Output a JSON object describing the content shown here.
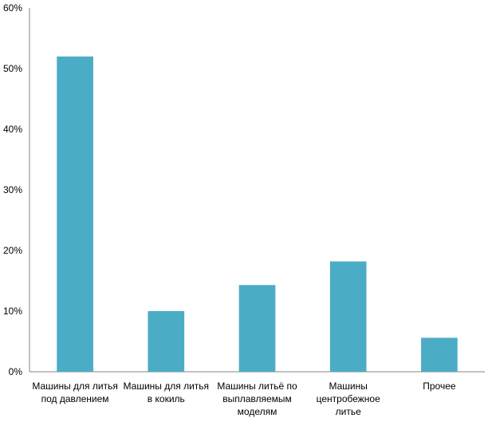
{
  "chart_data": {
    "type": "bar",
    "title": "",
    "xlabel": "",
    "ylabel": "",
    "ylim": [
      0,
      60
    ],
    "yticks": [
      0,
      10,
      20,
      30,
      40,
      50,
      60
    ],
    "ytick_suffix": "%",
    "grid": false,
    "categories": [
      [
        "Машины для литья",
        "под давлением"
      ],
      [
        "Машины для литья",
        "в кокиль"
      ],
      [
        "Машины литьё по",
        "выплавляемым",
        "моделям"
      ],
      [
        "Машины",
        "центробежное",
        "литье"
      ],
      [
        "Прочее"
      ]
    ],
    "values": [
      52,
      10,
      14.3,
      18.2,
      5.6
    ],
    "colors": {
      "bar": "#4bacc6",
      "axis": "#868686"
    }
  }
}
